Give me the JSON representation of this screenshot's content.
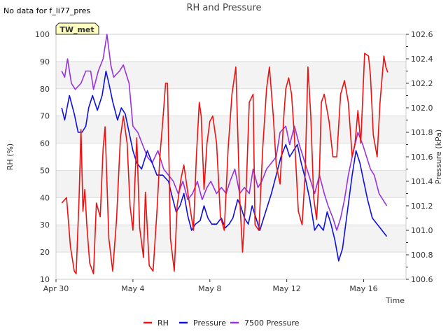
{
  "nodata_message": "No data for f_li77_pres",
  "badge": {
    "label": "TW_met",
    "bg": "#ffffc0",
    "border": "#333333",
    "text_color": "#800000"
  },
  "chart_data": {
    "type": "line",
    "title": "RH and Pressure",
    "xlabel": "Time",
    "ylabel_left": "RH (%)",
    "ylabel_right": "Pressure (kPa)",
    "x_ticks": [
      {
        "label": "Apr 30",
        "day": 0
      },
      {
        "label": "May 4",
        "day": 4
      },
      {
        "label": "May 8",
        "day": 8
      },
      {
        "label": "May 12",
        "day": 12
      },
      {
        "label": "May 16",
        "day": 16
      }
    ],
    "xlim_days": [
      0,
      18.2
    ],
    "ylim_left": [
      10,
      100
    ],
    "yticks_left": [
      "10",
      "20",
      "30",
      "40",
      "50",
      "60",
      "70",
      "80",
      "90",
      "100"
    ],
    "ylim_right": [
      100.6,
      102.6
    ],
    "yticks_right": [
      "100.6",
      "100.8",
      "101.0",
      "101.2",
      "101.4",
      "101.6",
      "101.8",
      "102.0",
      "102.2",
      "102.4",
      "102.6"
    ],
    "grid": "horizontal bands",
    "legend_position": "bottom",
    "series": [
      {
        "name": "RH",
        "color": "#ee1111",
        "axis": "left",
        "points": [
          [
            0.3,
            38
          ],
          [
            0.55,
            40
          ],
          [
            0.75,
            22
          ],
          [
            0.95,
            13
          ],
          [
            1.05,
            12
          ],
          [
            1.2,
            40
          ],
          [
            1.3,
            65
          ],
          [
            1.4,
            35
          ],
          [
            1.5,
            43
          ],
          [
            1.6,
            30
          ],
          [
            1.75,
            16
          ],
          [
            1.95,
            12
          ],
          [
            2.1,
            38
          ],
          [
            2.3,
            33
          ],
          [
            2.45,
            58
          ],
          [
            2.55,
            66
          ],
          [
            2.75,
            25
          ],
          [
            2.95,
            13
          ],
          [
            3.15,
            32
          ],
          [
            3.35,
            62
          ],
          [
            3.5,
            70
          ],
          [
            3.7,
            60
          ],
          [
            3.85,
            37
          ],
          [
            4.0,
            28
          ],
          [
            4.1,
            45
          ],
          [
            4.2,
            62
          ],
          [
            4.35,
            29
          ],
          [
            4.55,
            18
          ],
          [
            4.65,
            42
          ],
          [
            4.85,
            15
          ],
          [
            5.05,
            13
          ],
          [
            5.25,
            35
          ],
          [
            5.4,
            55
          ],
          [
            5.55,
            68
          ],
          [
            5.7,
            82
          ],
          [
            5.8,
            82
          ],
          [
            5.95,
            25
          ],
          [
            6.15,
            13
          ],
          [
            6.3,
            37
          ],
          [
            6.5,
            47
          ],
          [
            6.65,
            52
          ],
          [
            6.85,
            42
          ],
          [
            7.0,
            35
          ],
          [
            7.15,
            28
          ],
          [
            7.3,
            55
          ],
          [
            7.45,
            75
          ],
          [
            7.55,
            70
          ],
          [
            7.7,
            43
          ],
          [
            7.85,
            60
          ],
          [
            8.0,
            68
          ],
          [
            8.15,
            70
          ],
          [
            8.35,
            60
          ],
          [
            8.55,
            33
          ],
          [
            8.75,
            28
          ],
          [
            8.95,
            58
          ],
          [
            9.15,
            78
          ],
          [
            9.35,
            88
          ],
          [
            9.55,
            40
          ],
          [
            9.7,
            20
          ],
          [
            9.9,
            45
          ],
          [
            10.05,
            75
          ],
          [
            10.25,
            78
          ],
          [
            10.35,
            30
          ],
          [
            10.55,
            28
          ],
          [
            10.75,
            58
          ],
          [
            10.95,
            80
          ],
          [
            11.1,
            88
          ],
          [
            11.3,
            70
          ],
          [
            11.45,
            52
          ],
          [
            11.65,
            45
          ],
          [
            11.85,
            70
          ],
          [
            11.95,
            80
          ],
          [
            12.1,
            84
          ],
          [
            12.25,
            78
          ],
          [
            12.4,
            62
          ],
          [
            12.6,
            35
          ],
          [
            12.8,
            30
          ],
          [
            12.95,
            48
          ],
          [
            13.1,
            88
          ],
          [
            13.25,
            70
          ],
          [
            13.4,
            40
          ],
          [
            13.55,
            32
          ],
          [
            13.7,
            50
          ],
          [
            13.8,
            75
          ],
          [
            13.95,
            78
          ],
          [
            14.2,
            68
          ],
          [
            14.4,
            55
          ],
          [
            14.6,
            55
          ],
          [
            14.8,
            78
          ],
          [
            15.0,
            83
          ],
          [
            15.2,
            75
          ],
          [
            15.4,
            55
          ],
          [
            15.55,
            60
          ],
          [
            15.7,
            72
          ],
          [
            15.85,
            60
          ],
          [
            16.05,
            93
          ],
          [
            16.25,
            92
          ],
          [
            16.35,
            85
          ],
          [
            16.5,
            63
          ],
          [
            16.7,
            55
          ],
          [
            16.85,
            75
          ],
          [
            17.05,
            92
          ],
          [
            17.15,
            88
          ],
          [
            17.25,
            86
          ]
        ]
      },
      {
        "name": "Pressure",
        "color": "#1010dd",
        "axis": "right",
        "points": [
          [
            0.3,
            102.0
          ],
          [
            0.45,
            101.9
          ],
          [
            0.7,
            102.1
          ],
          [
            0.95,
            101.95
          ],
          [
            1.15,
            101.8
          ],
          [
            1.35,
            101.8
          ],
          [
            1.55,
            101.85
          ],
          [
            1.7,
            102.0
          ],
          [
            1.9,
            102.1
          ],
          [
            2.15,
            101.98
          ],
          [
            2.4,
            102.1
          ],
          [
            2.6,
            102.3
          ],
          [
            2.75,
            102.2
          ],
          [
            2.95,
            102.05
          ],
          [
            3.2,
            101.9
          ],
          [
            3.4,
            102.0
          ],
          [
            3.6,
            101.95
          ],
          [
            3.8,
            101.8
          ],
          [
            4.0,
            101.65
          ],
          [
            4.2,
            101.55
          ],
          [
            4.45,
            101.5
          ],
          [
            4.75,
            101.65
          ],
          [
            5.0,
            101.55
          ],
          [
            5.25,
            101.45
          ],
          [
            5.55,
            101.45
          ],
          [
            5.85,
            101.4
          ],
          [
            6.0,
            101.3
          ],
          [
            6.25,
            101.15
          ],
          [
            6.45,
            101.2
          ],
          [
            6.65,
            101.3
          ],
          [
            6.85,
            101.12
          ],
          [
            7.05,
            101.0
          ],
          [
            7.25,
            101.05
          ],
          [
            7.5,
            101.08
          ],
          [
            7.7,
            101.2
          ],
          [
            7.9,
            101.1
          ],
          [
            8.1,
            101.05
          ],
          [
            8.35,
            101.05
          ],
          [
            8.6,
            101.1
          ],
          [
            8.8,
            101.02
          ],
          [
            9.0,
            101.05
          ],
          [
            9.2,
            101.1
          ],
          [
            9.45,
            101.25
          ],
          [
            9.6,
            101.2
          ],
          [
            9.8,
            101.1
          ],
          [
            10.0,
            101.05
          ],
          [
            10.2,
            101.2
          ],
          [
            10.4,
            101.1
          ],
          [
            10.6,
            101.0
          ],
          [
            10.8,
            101.1
          ],
          [
            11.0,
            101.2
          ],
          [
            11.2,
            101.3
          ],
          [
            11.45,
            101.45
          ],
          [
            11.7,
            101.6
          ],
          [
            11.95,
            101.7
          ],
          [
            12.15,
            101.6
          ],
          [
            12.35,
            101.65
          ],
          [
            12.55,
            101.7
          ],
          [
            12.75,
            101.55
          ],
          [
            13.0,
            101.4
          ],
          [
            13.2,
            101.25
          ],
          [
            13.45,
            101.0
          ],
          [
            13.65,
            101.05
          ],
          [
            13.9,
            101.0
          ],
          [
            14.1,
            101.15
          ],
          [
            14.3,
            101.05
          ],
          [
            14.5,
            100.92
          ],
          [
            14.7,
            100.75
          ],
          [
            14.9,
            100.85
          ],
          [
            15.15,
            101.15
          ],
          [
            15.4,
            101.45
          ],
          [
            15.6,
            101.65
          ],
          [
            15.8,
            101.55
          ],
          [
            16.0,
            101.4
          ],
          [
            16.2,
            101.25
          ],
          [
            16.45,
            101.1
          ],
          [
            16.7,
            101.05
          ],
          [
            16.95,
            101.0
          ],
          [
            17.2,
            100.95
          ]
        ]
      },
      {
        "name": "7500 Pressure",
        "color": "#9933dd",
        "axis": "right",
        "points": [
          [
            0.3,
            102.3
          ],
          [
            0.45,
            102.25
          ],
          [
            0.6,
            102.4
          ],
          [
            0.8,
            102.2
          ],
          [
            1.0,
            102.15
          ],
          [
            1.3,
            102.2
          ],
          [
            1.55,
            102.3
          ],
          [
            1.8,
            102.3
          ],
          [
            1.95,
            102.15
          ],
          [
            2.2,
            102.3
          ],
          [
            2.45,
            102.4
          ],
          [
            2.65,
            102.6
          ],
          [
            2.85,
            102.35
          ],
          [
            3.0,
            102.25
          ],
          [
            3.3,
            102.3
          ],
          [
            3.5,
            102.35
          ],
          [
            3.8,
            102.2
          ],
          [
            4.0,
            101.85
          ],
          [
            4.25,
            101.8
          ],
          [
            4.5,
            101.7
          ],
          [
            4.75,
            101.6
          ],
          [
            5.0,
            101.55
          ],
          [
            5.3,
            101.65
          ],
          [
            5.6,
            101.5
          ],
          [
            5.85,
            101.45
          ],
          [
            6.1,
            101.4
          ],
          [
            6.35,
            101.3
          ],
          [
            6.6,
            101.4
          ],
          [
            6.85,
            101.25
          ],
          [
            7.1,
            101.3
          ],
          [
            7.35,
            101.4
          ],
          [
            7.6,
            101.25
          ],
          [
            7.85,
            101.35
          ],
          [
            8.05,
            101.4
          ],
          [
            8.35,
            101.3
          ],
          [
            8.6,
            101.35
          ],
          [
            8.85,
            101.3
          ],
          [
            9.05,
            101.4
          ],
          [
            9.3,
            101.5
          ],
          [
            9.55,
            101.3
          ],
          [
            9.8,
            101.35
          ],
          [
            10.05,
            101.3
          ],
          [
            10.25,
            101.5
          ],
          [
            10.5,
            101.35
          ],
          [
            10.7,
            101.4
          ],
          [
            10.95,
            101.5
          ],
          [
            11.2,
            101.55
          ],
          [
            11.45,
            101.6
          ],
          [
            11.65,
            101.8
          ],
          [
            11.95,
            101.85
          ],
          [
            12.15,
            101.7
          ],
          [
            12.4,
            101.85
          ],
          [
            12.65,
            101.7
          ],
          [
            12.85,
            101.6
          ],
          [
            13.05,
            101.5
          ],
          [
            13.25,
            101.4
          ],
          [
            13.45,
            101.3
          ],
          [
            13.7,
            101.45
          ],
          [
            13.95,
            101.3
          ],
          [
            14.15,
            101.2
          ],
          [
            14.4,
            101.1
          ],
          [
            14.6,
            101.0
          ],
          [
            14.8,
            101.1
          ],
          [
            15.0,
            101.25
          ],
          [
            15.2,
            101.45
          ],
          [
            15.4,
            101.6
          ],
          [
            15.55,
            101.7
          ],
          [
            15.7,
            101.8
          ],
          [
            15.95,
            101.7
          ],
          [
            16.15,
            101.6
          ],
          [
            16.35,
            101.5
          ],
          [
            16.55,
            101.45
          ],
          [
            16.8,
            101.3
          ],
          [
            17.0,
            101.25
          ],
          [
            17.2,
            101.2
          ]
        ]
      }
    ]
  }
}
